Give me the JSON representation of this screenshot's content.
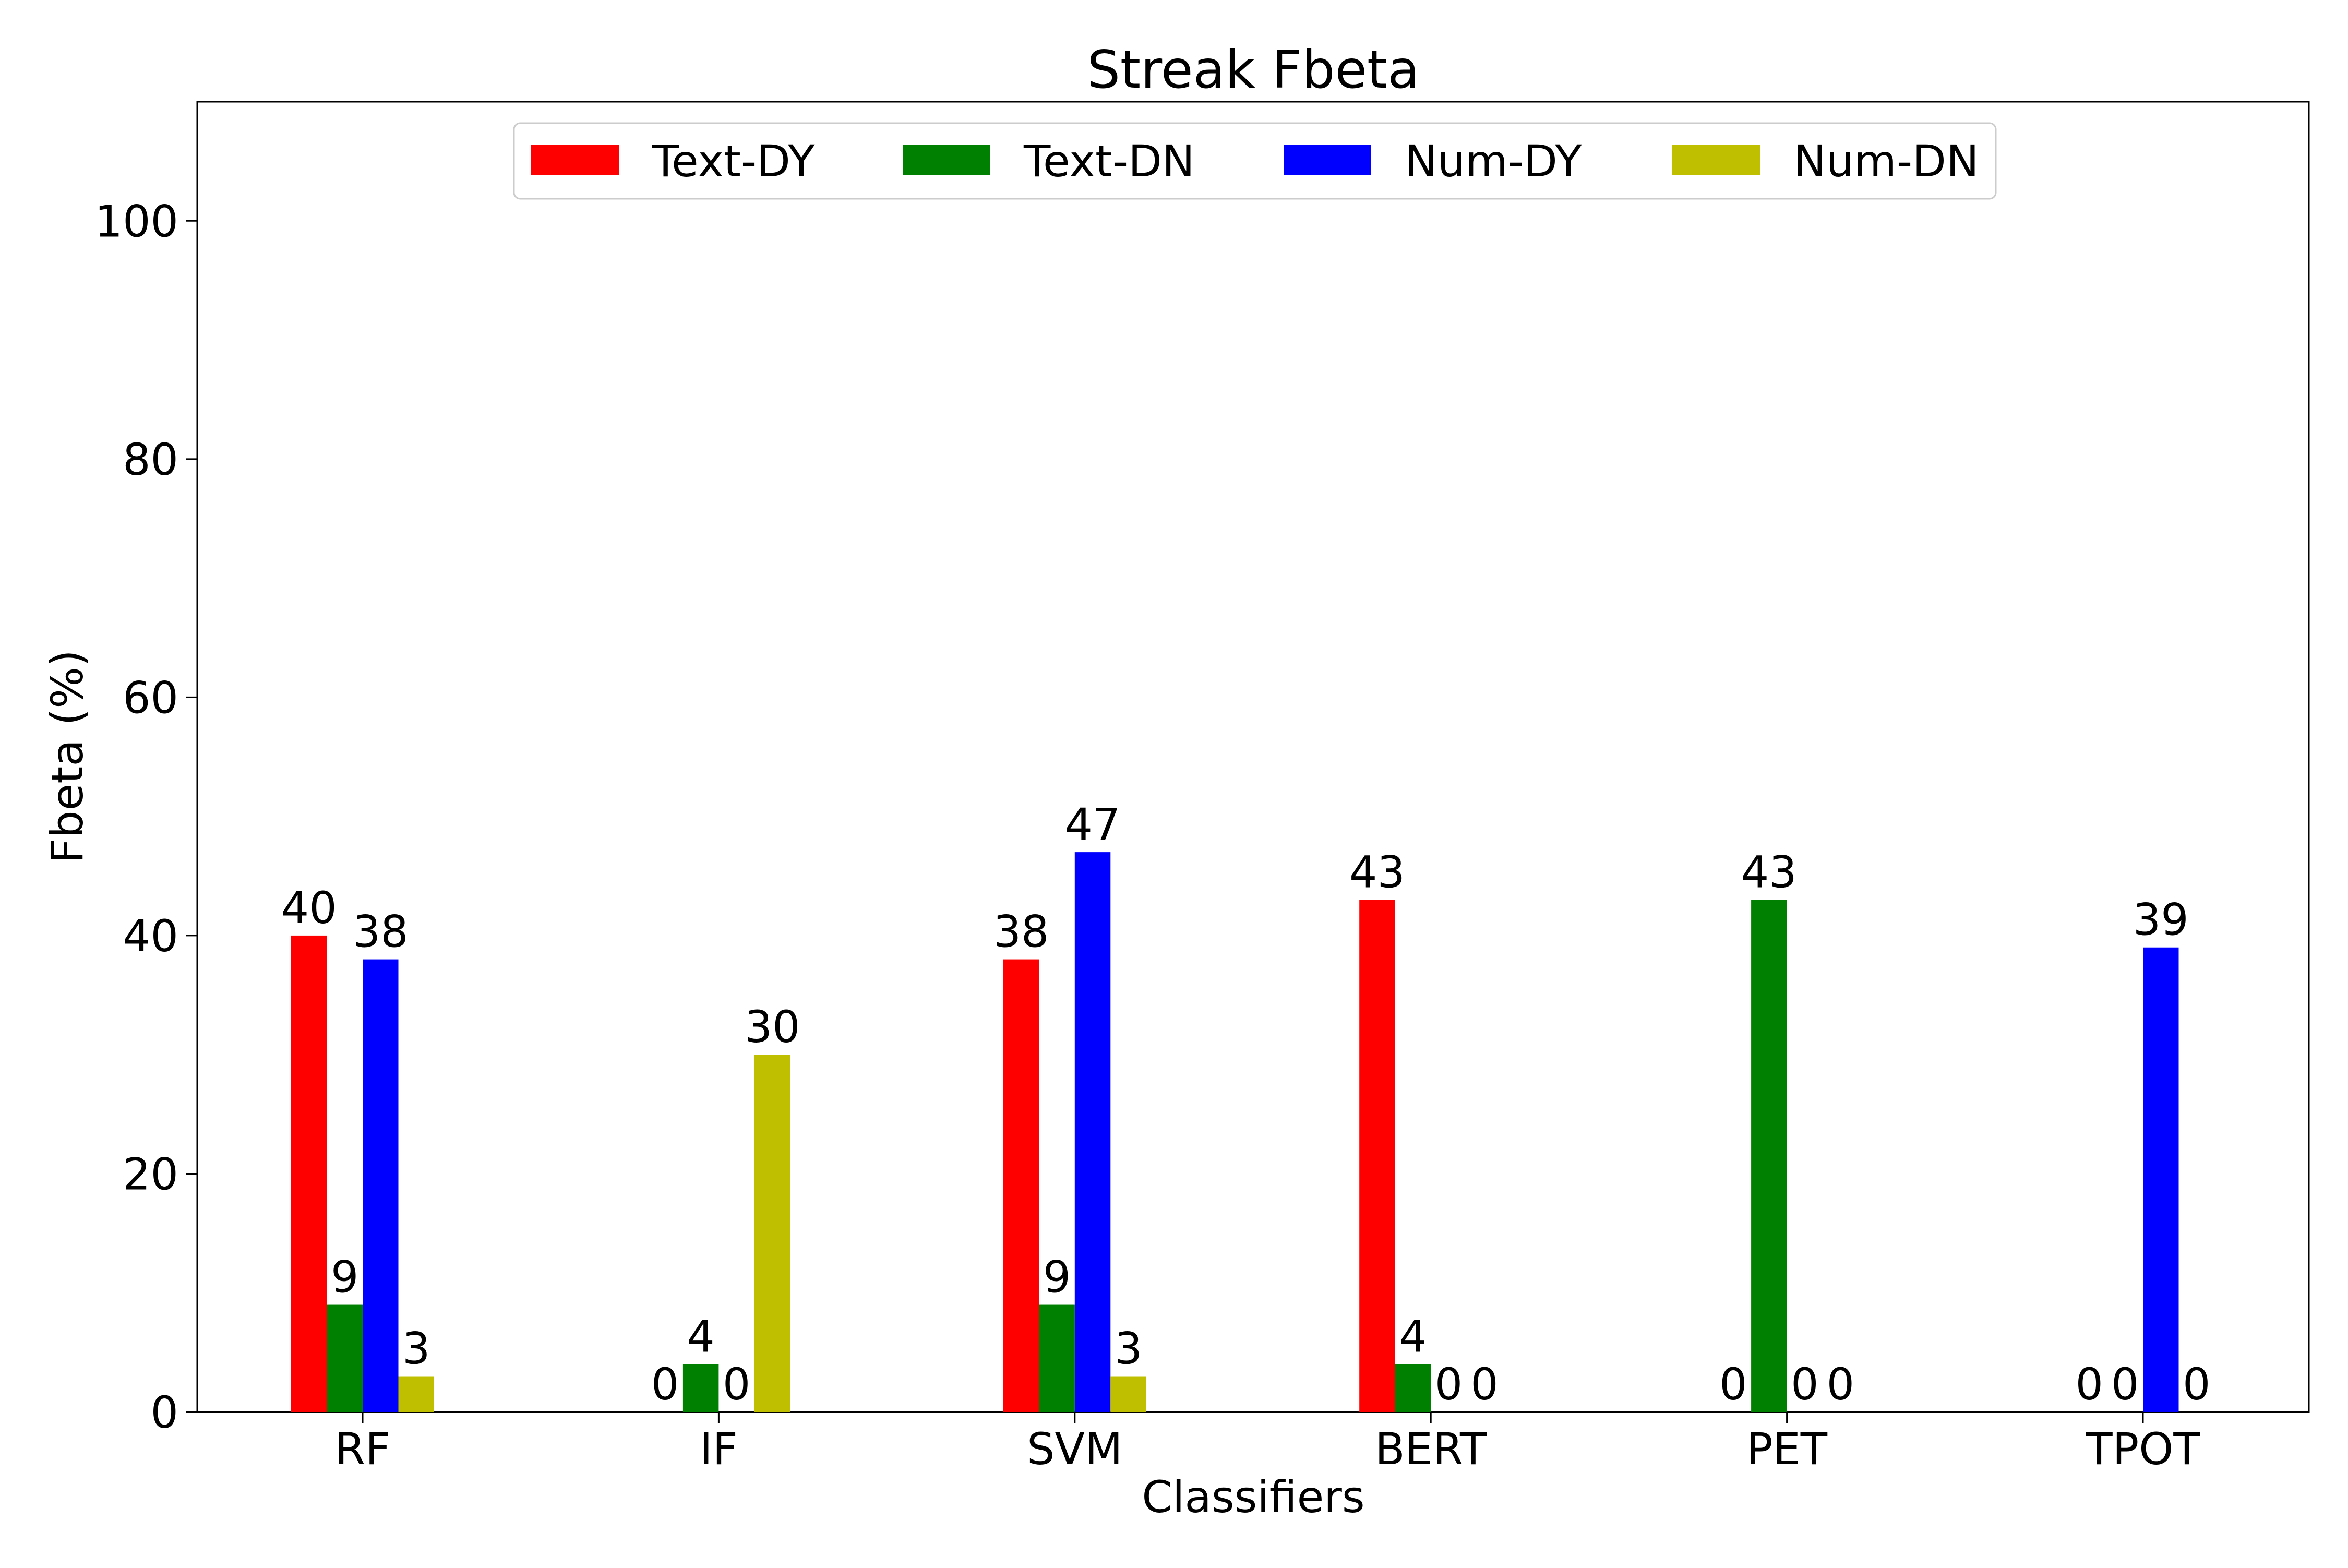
{
  "chart_data": {
    "type": "bar",
    "title": "Streak Fbeta",
    "xlabel": "Classifiers",
    "ylabel": "Fbeta (%)",
    "ylim": [
      0,
      110
    ],
    "yticks": [
      0,
      20,
      40,
      60,
      80,
      100
    ],
    "categories": [
      "RF",
      "IF",
      "SVM",
      "BERT",
      "PET",
      "TPOT"
    ],
    "series": [
      {
        "name": "Text-DY",
        "color": "#ff0000",
        "values": [
          40,
          0,
          38,
          43,
          0,
          0
        ]
      },
      {
        "name": "Text-DN",
        "color": "#008000",
        "values": [
          9,
          4,
          9,
          4,
          43,
          0
        ]
      },
      {
        "name": "Num-DY",
        "color": "#0000ff",
        "values": [
          38,
          0,
          47,
          0,
          0,
          39
        ]
      },
      {
        "name": "Num-DN",
        "color": "#bfbf00",
        "values": [
          3,
          30,
          3,
          0,
          0,
          0
        ]
      }
    ],
    "grid": false,
    "legend_position": "top-center"
  }
}
